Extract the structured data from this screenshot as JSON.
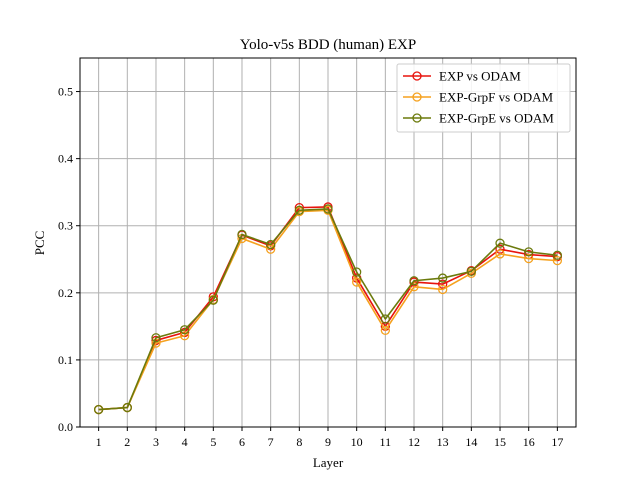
{
  "chart_data": {
    "type": "line",
    "title": "Yolo-v5s BDD (human) EXP",
    "xlabel": "Layer",
    "ylabel": "PCC",
    "x": [
      1,
      2,
      3,
      4,
      5,
      6,
      7,
      8,
      9,
      10,
      11,
      12,
      13,
      14,
      15,
      16,
      17
    ],
    "xlim": [
      0.35,
      17.65
    ],
    "ylim": [
      0.0,
      0.55
    ],
    "yticks": [
      0.0,
      0.1,
      0.2,
      0.3,
      0.4,
      0.5
    ],
    "ytick_labels": [
      "0.0",
      "0.1",
      "0.2",
      "0.3",
      "0.4",
      "0.5"
    ],
    "xtick_labels": [
      "1",
      "2",
      "3",
      "4",
      "5",
      "6",
      "7",
      "8",
      "9",
      "10",
      "11",
      "12",
      "13",
      "14",
      "15",
      "16",
      "17"
    ],
    "grid": true,
    "legend_position": "top-right",
    "marker": "open-circle",
    "series": [
      {
        "name": "EXP vs ODAM",
        "color": "#e8130d",
        "values": [
          0.026,
          0.029,
          0.129,
          0.141,
          0.194,
          0.286,
          0.27,
          0.327,
          0.328,
          0.222,
          0.15,
          0.216,
          0.213,
          0.233,
          0.265,
          0.257,
          0.254
        ]
      },
      {
        "name": "EXP-GrpF vs ODAM",
        "color": "#f5a11e",
        "values": [
          0.026,
          0.029,
          0.125,
          0.136,
          0.19,
          0.281,
          0.265,
          0.321,
          0.323,
          0.216,
          0.144,
          0.209,
          0.205,
          0.229,
          0.258,
          0.251,
          0.248
        ]
      },
      {
        "name": "EXP-GrpE vs ODAM",
        "color": "#6b7a0c",
        "values": [
          0.026,
          0.029,
          0.133,
          0.145,
          0.189,
          0.287,
          0.272,
          0.323,
          0.325,
          0.231,
          0.161,
          0.218,
          0.222,
          0.232,
          0.274,
          0.261,
          0.256
        ]
      }
    ]
  }
}
